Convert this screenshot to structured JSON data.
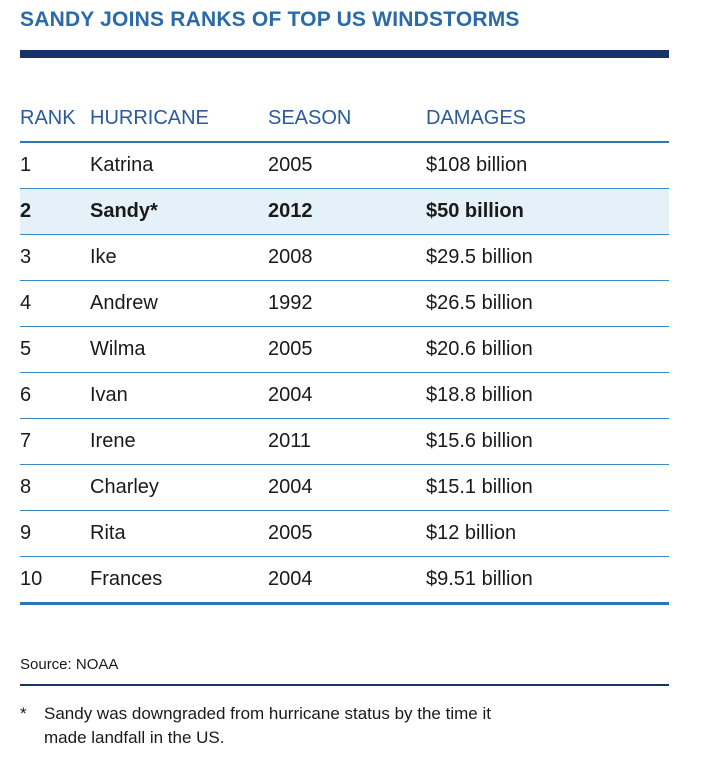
{
  "title": "SANDY JOINS RANKS OF TOP US WINDSTORMS",
  "table": {
    "headers": [
      "RANK",
      "HURRICANE",
      "SEASON",
      "DAMAGES"
    ],
    "rows": [
      [
        "1",
        "Katrina",
        "2005",
        "$108 billion"
      ],
      [
        "2",
        "Sandy*",
        "2012",
        "$50 billion"
      ],
      [
        "3",
        "Ike",
        "2008",
        "$29.5 billion"
      ],
      [
        "4",
        "Andrew",
        "1992",
        "$26.5 billion"
      ],
      [
        "5",
        "Wilma",
        "2005",
        "$20.6 billion"
      ],
      [
        "6",
        "Ivan",
        "2004",
        "$18.8 billion"
      ],
      [
        "7",
        "Irene",
        "2011",
        "$15.6 billion"
      ],
      [
        "8",
        "Charley",
        "2004",
        "$15.1 billion"
      ],
      [
        "9",
        "Rita",
        "2005",
        "$12 billion"
      ],
      [
        "10",
        "Frances",
        "2004",
        "$9.51 billion"
      ]
    ],
    "highlight_row": 1
  },
  "source": "Source: NOAA",
  "footnote": {
    "marker": "*",
    "text": "Sandy was downgraded from hurricane status by the time it made landfall in the US."
  },
  "colors": {
    "title": "#2a6aa9",
    "bar": "#14346a",
    "rule": "#3a8ac8",
    "highlight": "#e4f1f8"
  }
}
